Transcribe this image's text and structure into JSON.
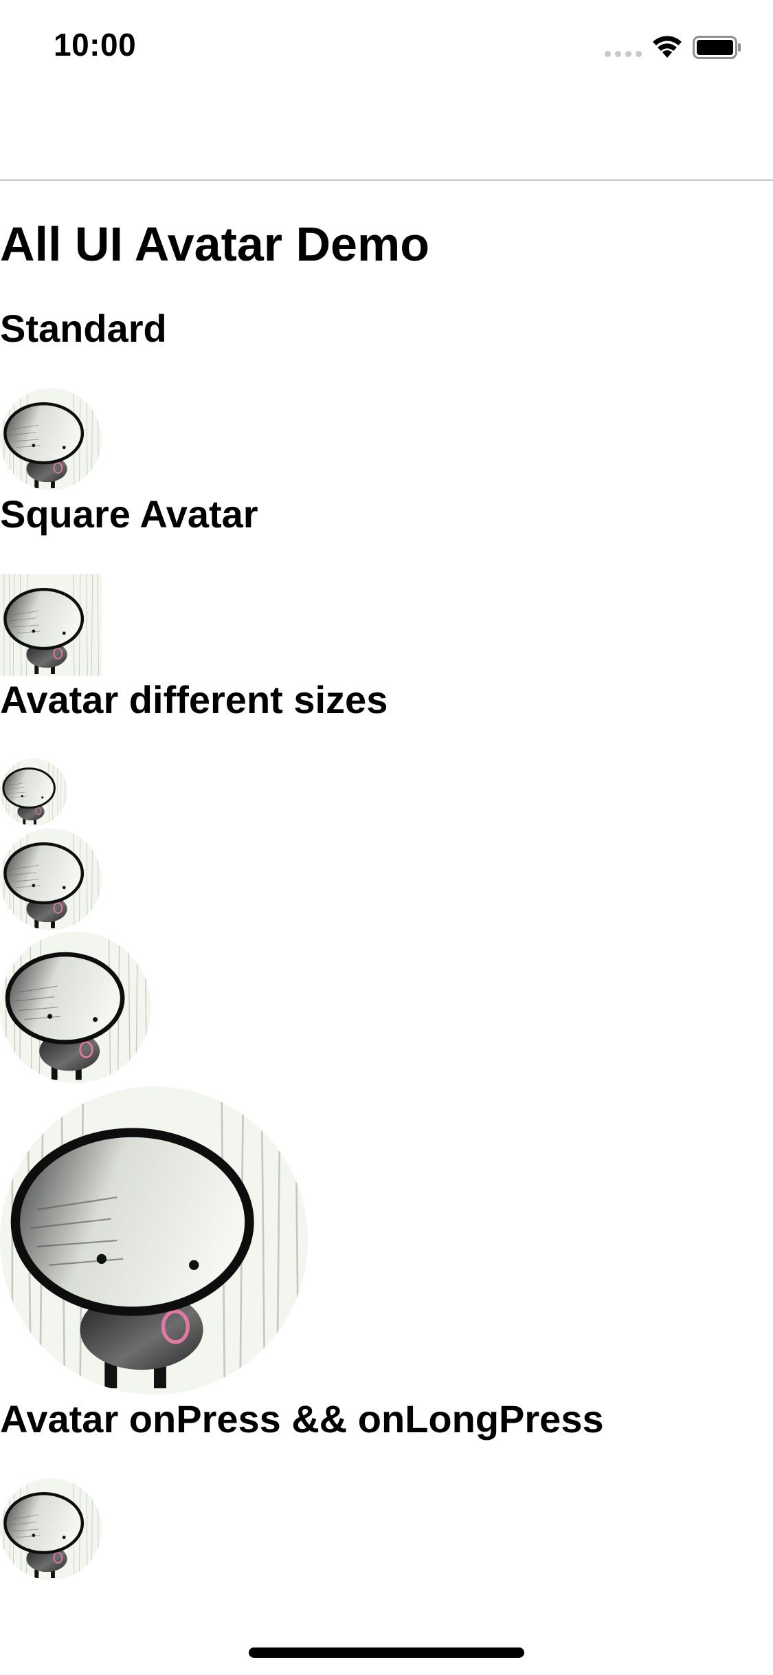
{
  "status_bar": {
    "time": "10:00",
    "wifi_icon": "wifi-icon",
    "battery_icon": "battery-icon",
    "signal_icon": "cellular-signal-icon"
  },
  "page": {
    "title": "All UI Avatar Demo"
  },
  "sections": {
    "standard": {
      "heading": "Standard",
      "avatar_shape": "rounded"
    },
    "square": {
      "heading": "Square Avatar",
      "avatar_shape": "square"
    },
    "sizes": {
      "heading": "Avatar different sizes",
      "avatar_shape": "rounded"
    },
    "press": {
      "heading": "Avatar onPress && onLongPress",
      "avatar_shape": "rounded"
    }
  },
  "avatar_image": "cartoon-character-avatar",
  "colors": {
    "background": "#ffffff",
    "text": "#000000",
    "nav_border": "#c8c7cc",
    "avatar_bg": "#f3f7f0"
  }
}
